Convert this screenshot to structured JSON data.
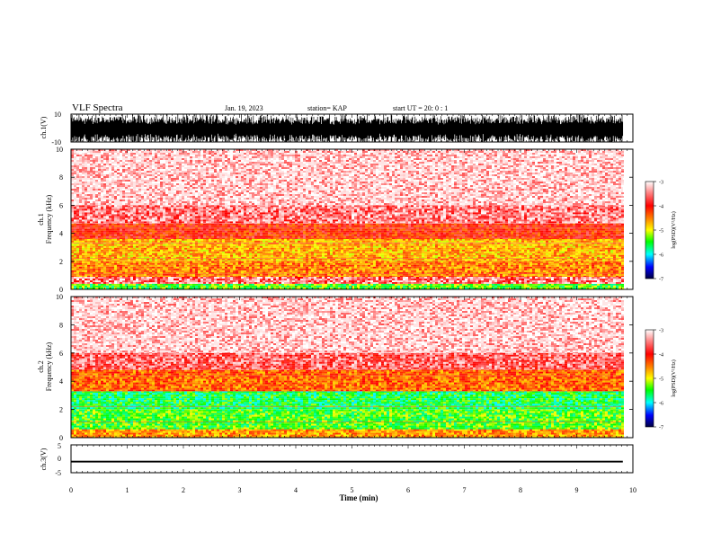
{
  "header": {
    "title": "VLF Spectra",
    "date": "Jan. 19, 2023",
    "station": "station= KAP",
    "start_time": "start  UT =   20: 0  : 1"
  },
  "colors": {
    "ink": "#000000",
    "spectrogram_bg": "#ffe6e6"
  },
  "chart_data": [
    {
      "type": "line",
      "name": "waveform-ch1",
      "ylabel": "ch.1(V)",
      "ylim": [
        -10,
        10
      ],
      "yticks": [
        10,
        -10
      ],
      "xlim": [
        0,
        10
      ],
      "duration_min": 9.82,
      "description_values": "dense oscillating waveform spanning full +/-10 V range"
    },
    {
      "type": "heatmap",
      "name": "spectrogram-ch1",
      "ylabel_top": "ch.1",
      "ylabel": "Frequency  (kHz)",
      "ylim": [
        0,
        10
      ],
      "yticks": [
        0,
        2,
        4,
        6,
        8,
        10
      ],
      "xlim": [
        0,
        10
      ],
      "duration_min": 9.82,
      "colorbar": {
        "label": "log(PSD)(V²/Hz)",
        "range": [
          -7,
          -3
        ],
        "ticks": [
          -3,
          -4,
          -5,
          -6,
          -7
        ]
      },
      "bands": [
        {
          "from_khz": 0,
          "to_khz": 0.4,
          "level": -5.2
        },
        {
          "from_khz": 0.4,
          "to_khz": 0.9,
          "level": -3.4
        },
        {
          "from_khz": 0.9,
          "to_khz": 2.0,
          "level": -4.3
        },
        {
          "from_khz": 2.0,
          "to_khz": 3.6,
          "level": -4.5
        },
        {
          "from_khz": 3.6,
          "to_khz": 4.7,
          "level": -3.9
        },
        {
          "from_khz": 4.7,
          "to_khz": 6.0,
          "level": -3.4
        },
        {
          "from_khz": 6.0,
          "to_khz": 10.0,
          "level": -3.1
        }
      ]
    },
    {
      "type": "heatmap",
      "name": "spectrogram-ch2",
      "ylabel_top": "ch.2",
      "ylabel": "Frequency  (kHz)",
      "ylim": [
        0,
        10
      ],
      "yticks": [
        0,
        2,
        4,
        6,
        8,
        10
      ],
      "xlim": [
        0,
        10
      ],
      "duration_min": 9.82,
      "colorbar": {
        "label": "log(PSD)(V²/Hz)",
        "range": [
          -7,
          -3
        ],
        "ticks": [
          -3,
          -4,
          -5,
          -6,
          -7
        ]
      },
      "bands": [
        {
          "from_khz": 0,
          "to_khz": 0.6,
          "level": -4.4
        },
        {
          "from_khz": 0.6,
          "to_khz": 2.0,
          "level": -5.2
        },
        {
          "from_khz": 2.0,
          "to_khz": 3.3,
          "level": -5.4
        },
        {
          "from_khz": 3.3,
          "to_khz": 4.8,
          "level": -4.2
        },
        {
          "from_khz": 4.8,
          "to_khz": 6.0,
          "level": -3.5
        },
        {
          "from_khz": 6.0,
          "to_khz": 10.0,
          "level": -3.1
        }
      ]
    },
    {
      "type": "line",
      "name": "waveform-ch3",
      "ylabel": "ch.3(V)",
      "ylim": [
        -5,
        5
      ],
      "yticks": [
        5,
        0,
        -5
      ],
      "xlim": [
        0,
        10
      ],
      "xlabel": "Time  (min)",
      "xticks": [
        0,
        1,
        2,
        3,
        4,
        5,
        6,
        7,
        8,
        9,
        10
      ],
      "duration_min": 9.82,
      "value_range": [
        -1.3,
        -0.7
      ]
    }
  ]
}
